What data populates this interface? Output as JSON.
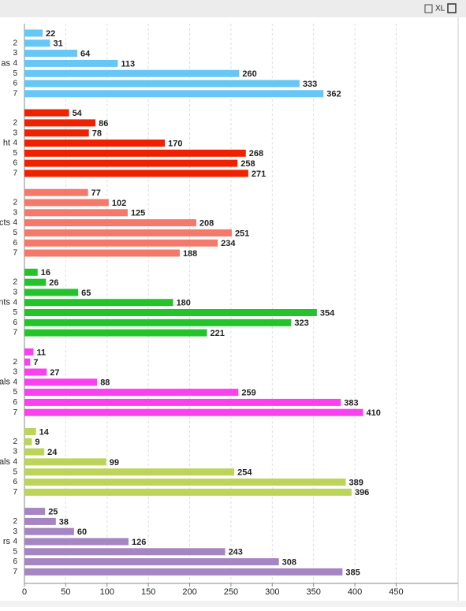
{
  "toolbar": {
    "label": "XL"
  },
  "chart_data": {
    "type": "bar",
    "orientation": "horizontal",
    "categories": [
      null,
      "2",
      "3",
      "4",
      "5",
      "6",
      "7"
    ],
    "series": [
      {
        "name": "as",
        "color": "#66c6f6",
        "values": [
          22,
          31,
          64,
          113,
          260,
          333,
          362
        ]
      },
      {
        "name": "ht",
        "color": "#ee2200",
        "values": [
          54,
          86,
          78,
          170,
          268,
          258,
          271
        ]
      },
      {
        "name": "cts",
        "color": "#f4796a",
        "values": [
          77,
          102,
          125,
          208,
          251,
          234,
          188
        ]
      },
      {
        "name": "nts",
        "color": "#22c42a",
        "values": [
          16,
          26,
          65,
          180,
          354,
          323,
          221
        ]
      },
      {
        "name": "als",
        "color": "#fb40f0",
        "values": [
          11,
          7,
          27,
          88,
          259,
          383,
          410
        ]
      },
      {
        "name": "als",
        "color": "#bcd45a",
        "values": [
          14,
          9,
          24,
          99,
          254,
          389,
          396
        ]
      },
      {
        "name": "rs",
        "color": "#a585c2",
        "values": [
          25,
          38,
          60,
          126,
          243,
          308,
          385
        ]
      }
    ],
    "xlim": [
      0,
      525
    ],
    "xticks": [
      0,
      50,
      100,
      150,
      200,
      250,
      300,
      350,
      400,
      450
    ],
    "grid": true
  }
}
